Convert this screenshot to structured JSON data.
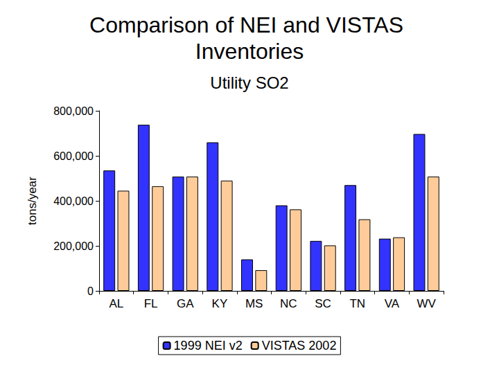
{
  "chart_data": {
    "type": "bar",
    "title": "Comparison of NEI and VISTAS Inventories",
    "subtitle": "Utility SO2",
    "y_label": "tons/year",
    "categories": [
      "AL",
      "FL",
      "GA",
      "KY",
      "MS",
      "NC",
      "SC",
      "TN",
      "VA",
      "WV"
    ],
    "series": [
      {
        "name": "1999 NEI v2",
        "color": "#3333ff",
        "values": [
          535000,
          738000,
          508000,
          660000,
          140000,
          380000,
          222000,
          470000,
          232000,
          697000
        ]
      },
      {
        "name": "VISTAS 2002",
        "color": "#ffcc99",
        "values": [
          445000,
          465000,
          508000,
          490000,
          92000,
          362000,
          202000,
          318000,
          238000,
          508000
        ]
      }
    ],
    "ylim": [
      0,
      800000
    ],
    "yticks": [
      0,
      {
        "value": 200000,
        "label": "200,000"
      },
      {
        "value": 400000,
        "label": "400,000"
      },
      {
        "value": 600000,
        "label": "600,000"
      },
      {
        "value": 800000,
        "label": "800,000"
      }
    ],
    "grid": false,
    "legend": "bottom"
  }
}
